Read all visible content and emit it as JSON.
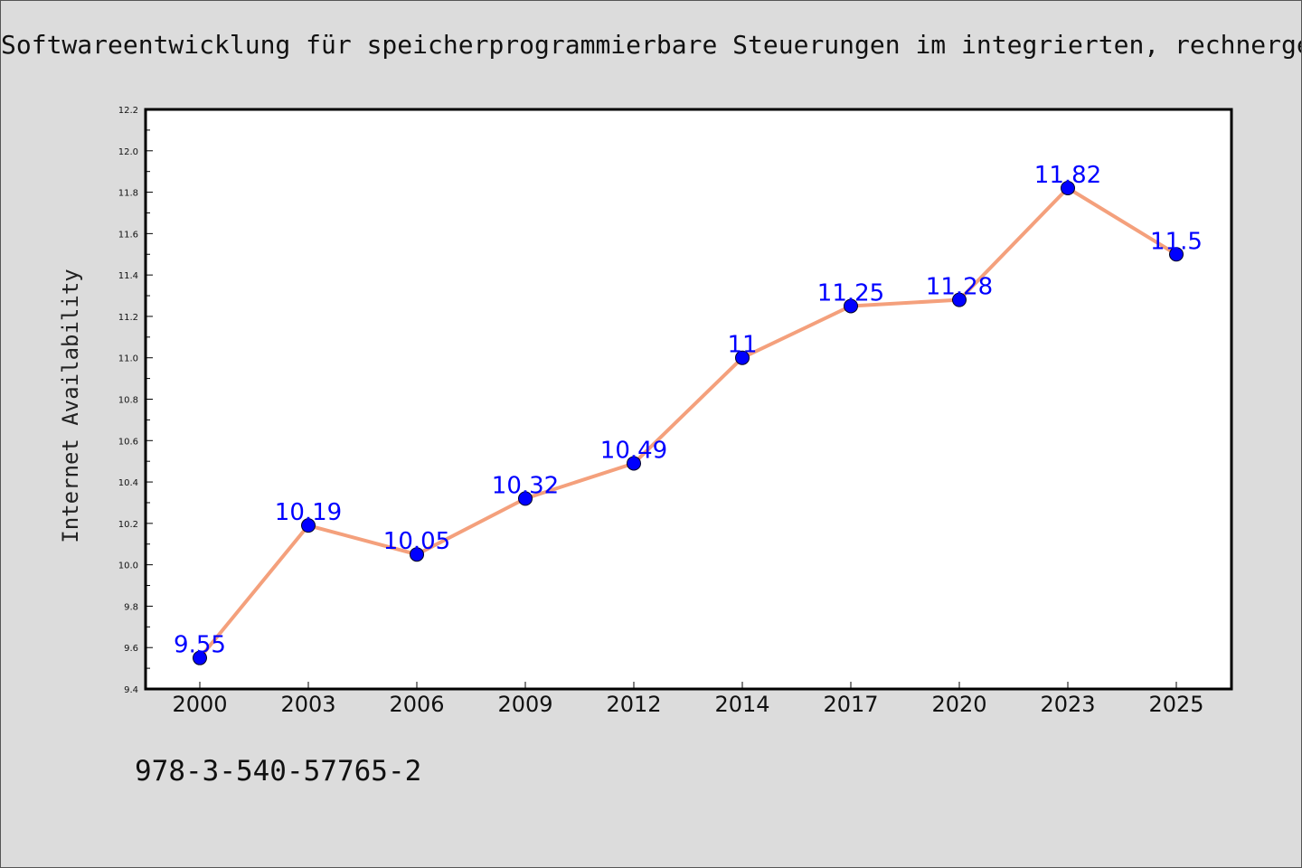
{
  "page": {
    "title": "Softwareentwicklung für speicherprogrammierbare Steuerungen im integrierten, rechnergestützten Arbeitsplatz",
    "footer_code": "978-3-540-57765-2"
  },
  "colors": {
    "background": "#dcdcdc",
    "plot_background": "#ffffff",
    "line": "#f4a07c",
    "marker": "#0000ff",
    "data_label": "#0000ff"
  },
  "chart_data": {
    "type": "line",
    "categories": [
      "2000",
      "2003",
      "2006",
      "2009",
      "2012",
      "2014",
      "2017",
      "2020",
      "2023",
      "2025"
    ],
    "series": [
      {
        "values": [
          9.55,
          10.19,
          10.05,
          10.32,
          10.49,
          11.0,
          11.25,
          11.28,
          11.82,
          11.5
        ],
        "labels": [
          "9.55",
          "10.19",
          "10.05",
          "10.32",
          "10.49",
          "11",
          "11.25",
          "11.28",
          "11.82",
          "11.5"
        ]
      }
    ],
    "xlabel": "",
    "ylabel": "Internet Availability",
    "ylim": [
      9.4,
      12.2
    ],
    "yticks": [
      "9.4",
      "9.6",
      "9.8",
      "10.0",
      "10.2",
      "10.4",
      "10.6",
      "10.8",
      "11.0",
      "11.2",
      "11.4",
      "11.6",
      "11.8",
      "12.0",
      "12.2"
    ],
    "grid": false,
    "legend": "none"
  }
}
